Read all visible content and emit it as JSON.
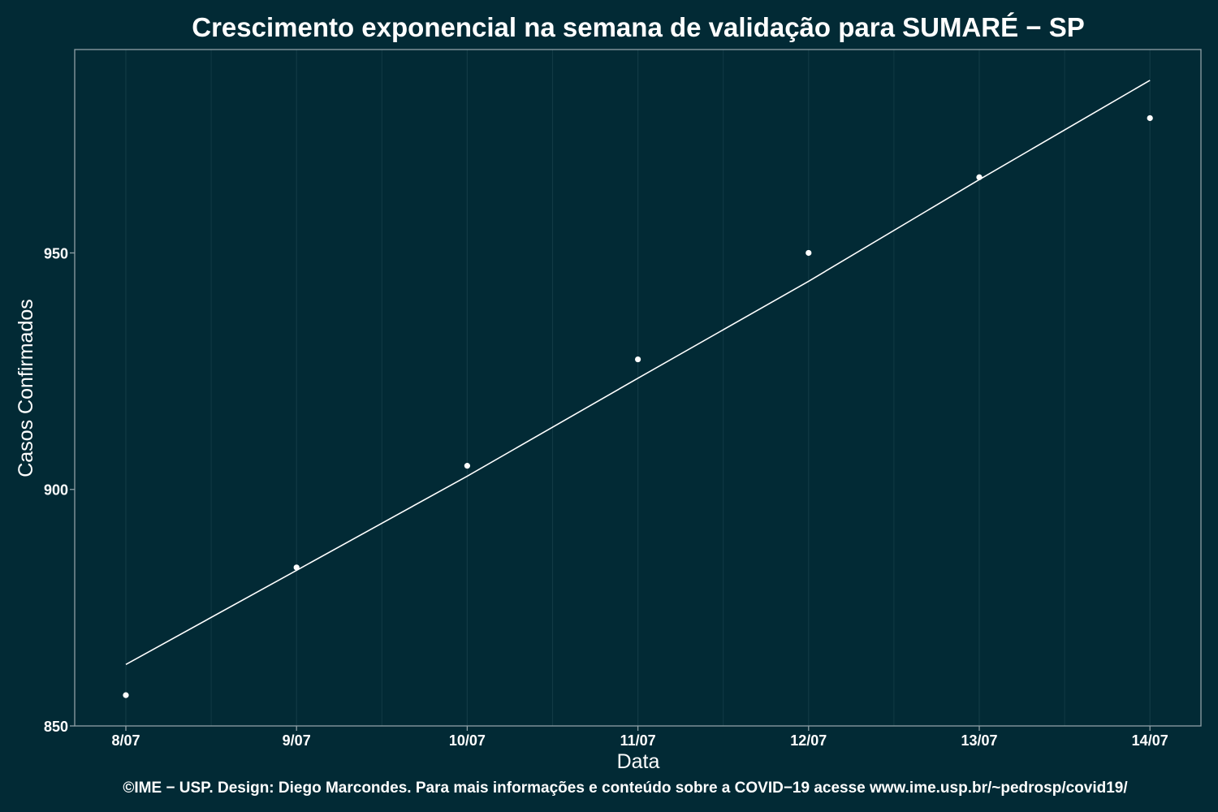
{
  "chart_data": {
    "type": "scatter",
    "title": "Crescimento exponencial na semana de validação para SUMARÉ − SP",
    "xlabel": "Data",
    "ylabel": "Casos Confirmados",
    "caption": "©IME − USP. Design: Diego Marcondes. Para mais informações e conteúdo sobre a COVID−19 acesse www.ime.usp.br/~pedrosp/covid19/",
    "categories": [
      "8/07",
      "9/07",
      "10/07",
      "11/07",
      "12/07",
      "13/07",
      "14/07"
    ],
    "y_ticks": [
      850,
      900,
      950
    ],
    "ylim": [
      850,
      993
    ],
    "grid": true,
    "series": [
      {
        "type": "scatter",
        "values": [
          856.5,
          883.5,
          905,
          927.5,
          950,
          966,
          978.5
        ]
      },
      {
        "type": "line",
        "values": [
          863,
          882.9,
          902.8,
          923.5,
          944,
          965.5,
          986.5
        ]
      }
    ],
    "colors": {
      "background": "#022a35",
      "panel_border": "#8fa0a6",
      "grid": "#123a45",
      "marks": "#ffffff"
    }
  }
}
